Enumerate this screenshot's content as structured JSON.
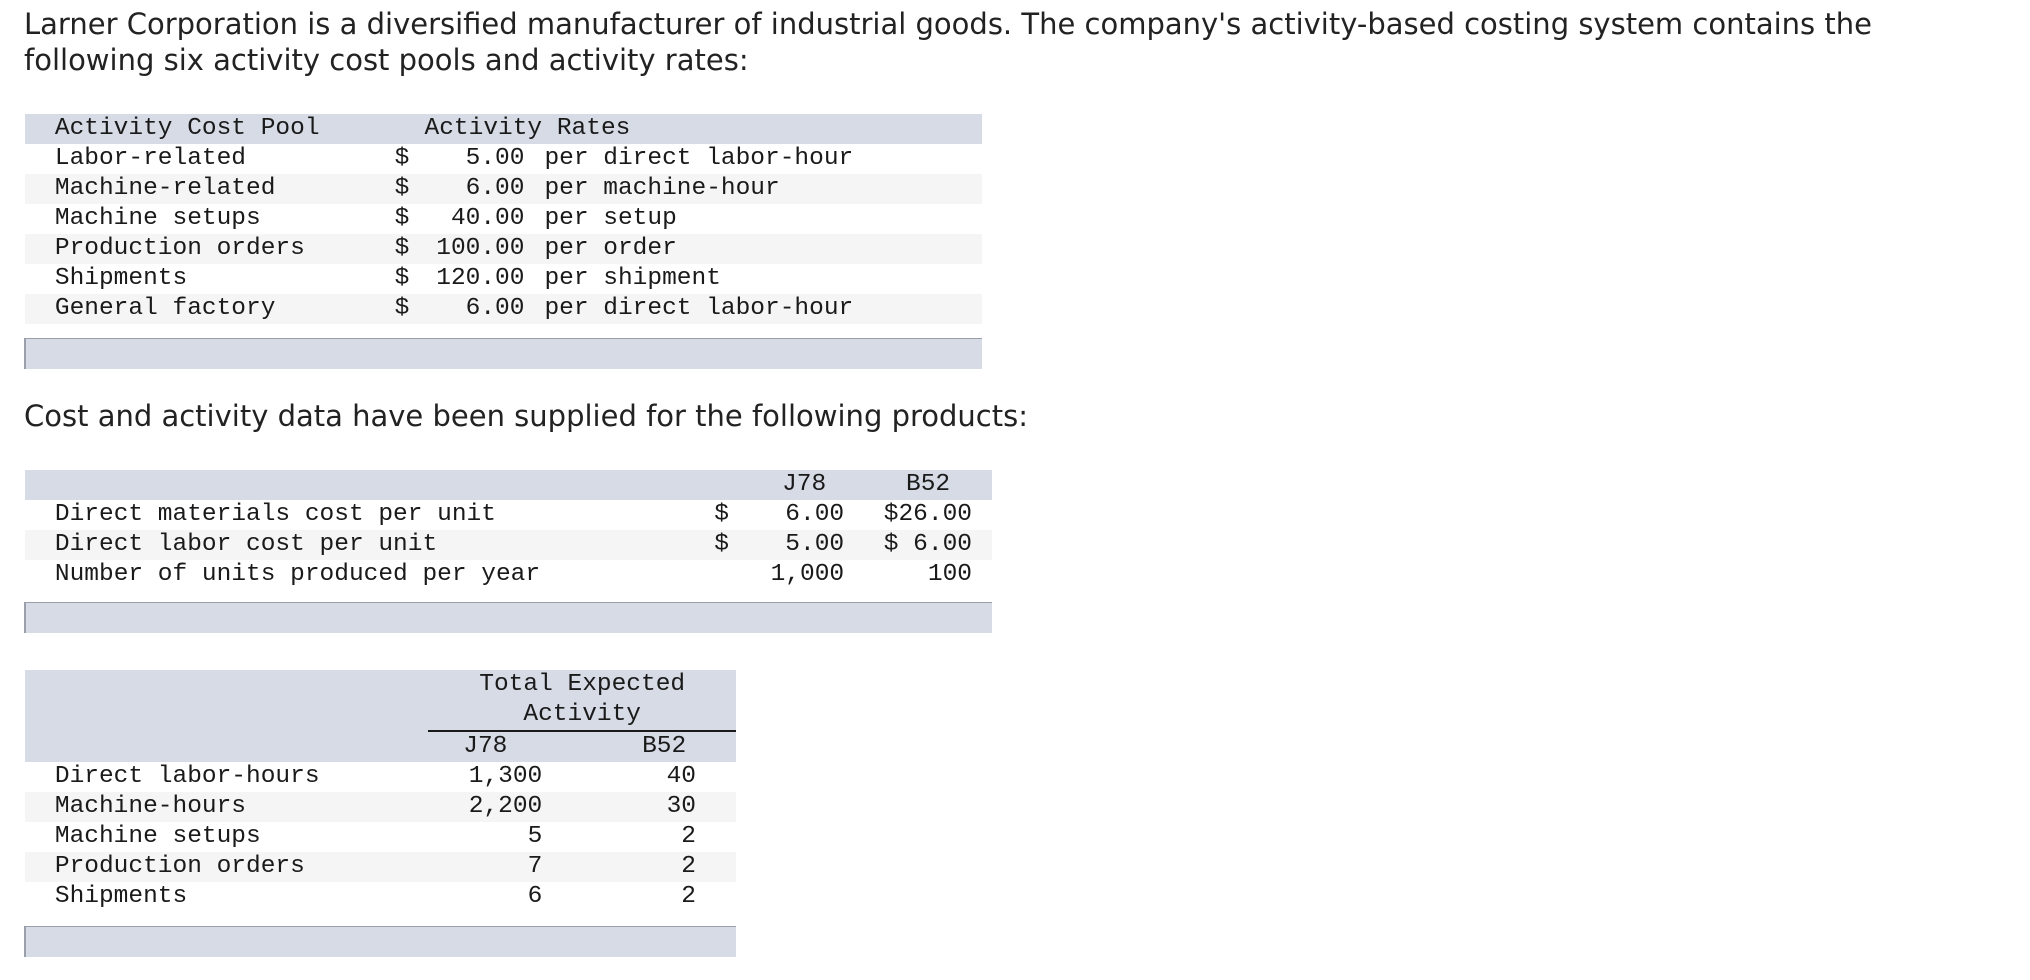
{
  "intro": {
    "line1": "Larner Corporation is a diversified manufacturer of industrial goods. The company's activity-based costing system contains the",
    "line2": "following six activity cost pools and activity rates:"
  },
  "rates_table": {
    "headers": {
      "pool": "Activity Cost Pool",
      "rates": "Activity Rates"
    },
    "rows": [
      {
        "pool": "Labor-related",
        "currency": "$",
        "amount": "5.00",
        "unit": "per direct labor-hour"
      },
      {
        "pool": "Machine-related",
        "currency": "$",
        "amount": "6.00",
        "unit": "per machine-hour"
      },
      {
        "pool": "Machine setups",
        "currency": "$",
        "amount": "40.00",
        "unit": "per setup"
      },
      {
        "pool": "Production orders",
        "currency": "$",
        "amount": "100.00",
        "unit": "per order"
      },
      {
        "pool": "Shipments",
        "currency": "$",
        "amount": "120.00",
        "unit": "per shipment"
      },
      {
        "pool": "General factory",
        "currency": "$",
        "amount": "6.00",
        "unit": "per direct labor-hour"
      }
    ]
  },
  "middle_text": "Cost and activity data have been supplied for the following products:",
  "products_table": {
    "headers": {
      "j78": "J78",
      "b52": "B52"
    },
    "rows": [
      {
        "label": "Direct materials cost per unit",
        "j78_cur": "$",
        "j78": "6.00",
        "b52": "$26.00"
      },
      {
        "label": "Direct labor cost per unit",
        "j78_cur": "$",
        "j78": "5.00",
        "b52": "$ 6.00"
      },
      {
        "label": "Number of units produced per year",
        "j78_cur": "",
        "j78": "1,000",
        "b52": "100"
      }
    ]
  },
  "activity_table": {
    "group_header_line1": "Total Expected",
    "group_header_line2": "Activity",
    "headers": {
      "j78": "J78",
      "b52": "B52"
    },
    "rows": [
      {
        "label": "Direct labor-hours",
        "j78": "1,300",
        "b52": "40"
      },
      {
        "label": "Machine-hours",
        "j78": "2,200",
        "b52": "30"
      },
      {
        "label": "Machine setups",
        "j78": "5",
        "b52": "2"
      },
      {
        "label": "Production orders",
        "j78": "7",
        "b52": "2"
      },
      {
        "label": "Shipments",
        "j78": "6",
        "b52": "2"
      }
    ]
  },
  "colors": {
    "header_bg": "#d6dbe6",
    "alt_row_bg": "#f5f5f5"
  }
}
